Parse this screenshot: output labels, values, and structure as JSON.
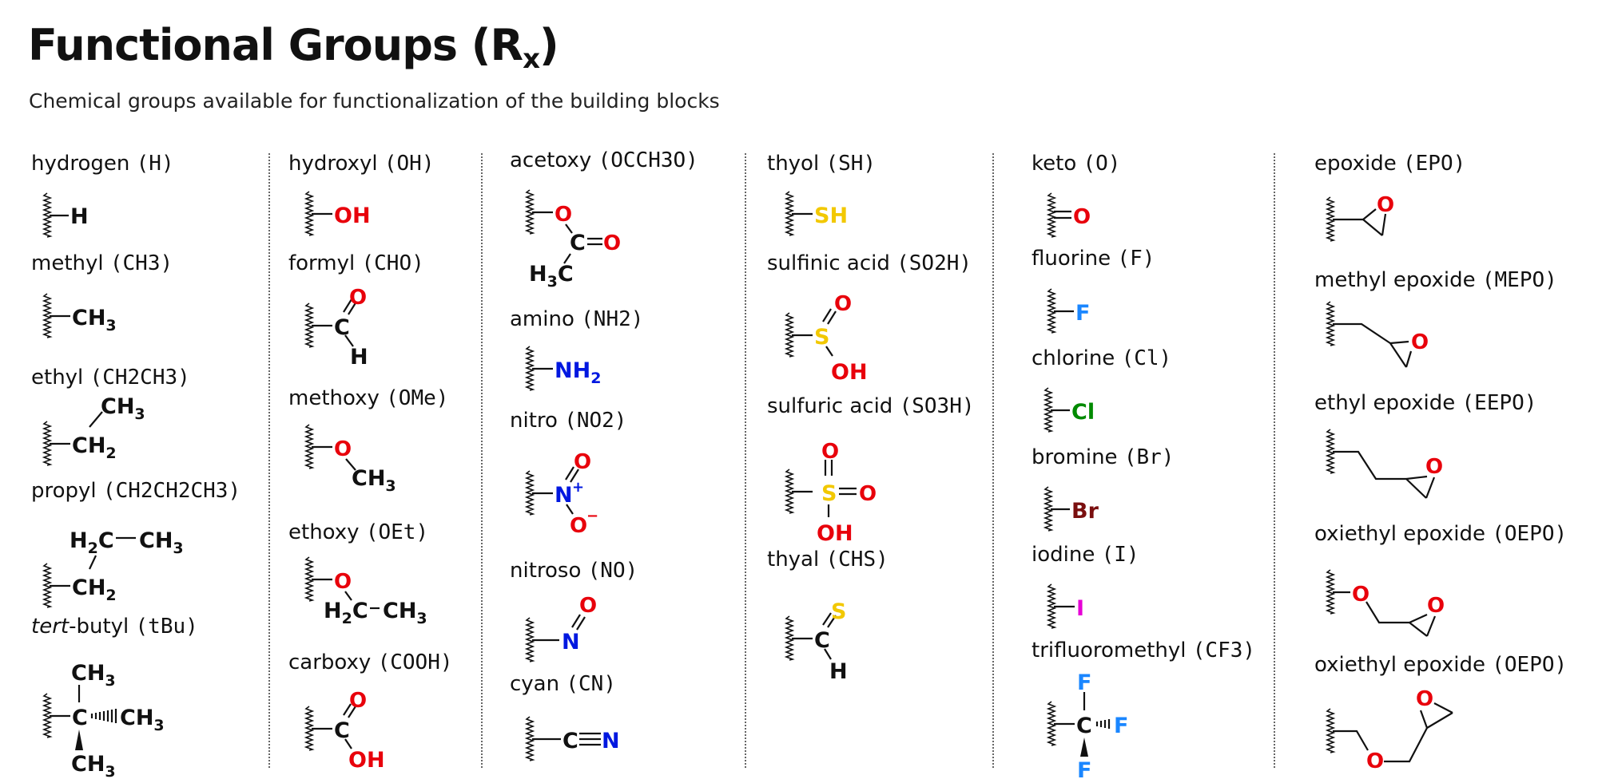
{
  "title": "Functional Groups (R",
  "title_sub": "x",
  "title_close": ")",
  "subtitle": "Chemical groups available for functionalization of the building blocks",
  "colors": {
    "oxygen": "#e8000b",
    "nitrogen": "#0018e0",
    "sulfur": "#f2c800",
    "fluorine": "#1a86ff",
    "chlorine": "#008a00",
    "bromine": "#7a0f0f",
    "iodine": "#e600d6",
    "carbon": "#111111"
  },
  "groups": [
    {
      "id": "hydrogen",
      "name": "hydrogen",
      "code": "(H)"
    },
    {
      "id": "methyl",
      "name": "methyl",
      "code": "(CH3)"
    },
    {
      "id": "ethyl",
      "name": "ethyl",
      "code": "(CH2CH3)"
    },
    {
      "id": "propyl",
      "name": "propyl",
      "code": "(CH2CH2CH3)"
    },
    {
      "id": "tert-butyl",
      "name_italic": "tert",
      "name": "-butyl",
      "code": "(tBu)"
    },
    {
      "id": "hydroxyl",
      "name": "hydroxyl",
      "code": "(OH)"
    },
    {
      "id": "formyl",
      "name": "formyl",
      "code": "(CHO)"
    },
    {
      "id": "methoxy",
      "name": "methoxy",
      "code": "(OMe)"
    },
    {
      "id": "ethoxy",
      "name": "ethoxy",
      "code": "(OEt)"
    },
    {
      "id": "carboxy",
      "name": "carboxy",
      "code": "(COOH)"
    },
    {
      "id": "acetoxy",
      "name": "acetoxy",
      "code": "(OCCH3O)"
    },
    {
      "id": "amino",
      "name": "amino",
      "code": "(NH2)"
    },
    {
      "id": "nitro",
      "name": "nitro",
      "code": "(NO2)"
    },
    {
      "id": "nitroso",
      "name": "nitroso",
      "code": "(NO)"
    },
    {
      "id": "cyan",
      "name": "cyan",
      "code": "(CN)"
    },
    {
      "id": "thyol",
      "name": "thyol",
      "code": "(SH)"
    },
    {
      "id": "sulfinic-acid",
      "name": "sulfinic acid",
      "code": "(SO2H)"
    },
    {
      "id": "sulfuric-acid",
      "name": "sulfuric acid",
      "code": "(SO3H)"
    },
    {
      "id": "thyal",
      "name": "thyal",
      "code": "(CHS)"
    },
    {
      "id": "keto",
      "name": "keto",
      "code": "(O)"
    },
    {
      "id": "fluorine",
      "name": "fluorine",
      "code": "(F)"
    },
    {
      "id": "chlorine",
      "name": "chlorine",
      "code": "(Cl)"
    },
    {
      "id": "bromine",
      "name": "bromine",
      "code": "(Br)"
    },
    {
      "id": "iodine",
      "name": "iodine",
      "code": "(I)"
    },
    {
      "id": "trifluoromethyl",
      "name": "trifluoromethyl",
      "code": "(CF3)"
    },
    {
      "id": "epoxide",
      "name": "epoxide",
      "code": "(EPO)"
    },
    {
      "id": "methyl-epoxide",
      "name": "methyl epoxide",
      "code": "(MEPO)"
    },
    {
      "id": "ethyl-epoxide",
      "name": "ethyl epoxide",
      "code": "(EEPO)"
    },
    {
      "id": "oxiethyl-epoxide",
      "name": "oxiethyl epoxide",
      "code": "(OEPO)"
    },
    {
      "id": "oxiethyl-epoxide-2",
      "name": "oxiethyl epoxide",
      "code": "(OEPO)"
    }
  ],
  "atoms": {
    "H": "H",
    "OH": "OH",
    "O": "O",
    "C": "C",
    "N": "N",
    "S": "S",
    "SH": "SH",
    "F": "F",
    "Cl": "Cl",
    "Br": "Br",
    "I": "I",
    "CH": "CH",
    "CH3": "3",
    "CH2": "2",
    "H3C": "H",
    "H2C": "H",
    "NH2": "NH",
    "plus": "+",
    "minus": "−",
    "sub2": "2",
    "sub3": "3"
  }
}
